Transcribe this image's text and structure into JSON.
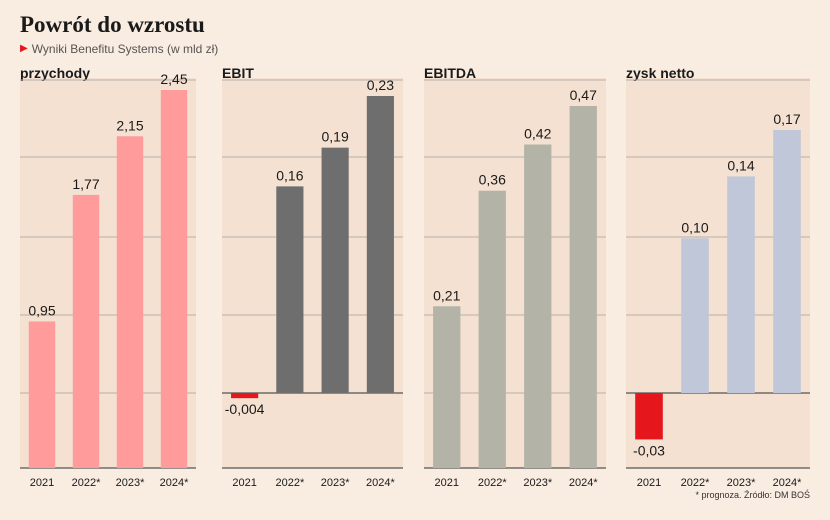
{
  "header": {
    "title": "Powrót do wzrostu",
    "subtitle": "Wyniki Benefitu Systems (w mld zł)"
  },
  "footnote": "* prognoza. Źródło: DM BOŚ",
  "colors": {
    "background": "#f9ece0",
    "grid": "#9a9a9a",
    "negative": "#e5161c",
    "przychody": "#ff9b9b",
    "ebit": "#6e6e6e",
    "ebitda": "#b3b4a7",
    "zysk_netto": "#c0c7d8"
  },
  "chart_data": [
    {
      "type": "bar",
      "title": "przychody",
      "categories": [
        "2021",
        "2022*",
        "2023*",
        "2024*"
      ],
      "values": [
        0.95,
        1.77,
        2.15,
        2.45
      ],
      "labels": [
        "0,95",
        "1,77",
        "2,15",
        "2,45"
      ],
      "ylim": [
        0,
        2.45
      ],
      "grid": true
    },
    {
      "type": "bar",
      "title": "EBIT",
      "categories": [
        "2021",
        "2022*",
        "2023*",
        "2024*"
      ],
      "values": [
        -0.004,
        0.16,
        0.19,
        0.23
      ],
      "labels": [
        "-0,004",
        "0,16",
        "0,19",
        "0,23"
      ],
      "ylim": [
        -0.05,
        0.23
      ],
      "grid": true
    },
    {
      "type": "bar",
      "title": "EBITDA",
      "categories": [
        "2021",
        "2022*",
        "2023*",
        "2024*"
      ],
      "values": [
        0.21,
        0.36,
        0.42,
        0.47
      ],
      "labels": [
        "0,21",
        "0,36",
        "0,42",
        "0,47"
      ],
      "ylim": [
        0,
        0.47
      ],
      "grid": true
    },
    {
      "type": "bar",
      "title": "zysk netto",
      "categories": [
        "2021",
        "2022*",
        "2023*",
        "2024*"
      ],
      "values": [
        -0.03,
        0.1,
        0.14,
        0.17
      ],
      "labels": [
        "-0,03",
        "0,10",
        "0,14",
        "0,17"
      ],
      "ylim": [
        -0.05,
        0.17
      ],
      "grid": true
    }
  ]
}
